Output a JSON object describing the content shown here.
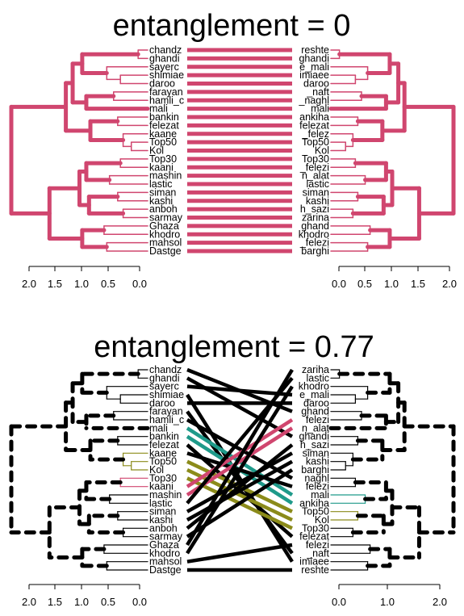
{
  "colors": {
    "pink": "#d0466f",
    "teal": "#1f9a8a",
    "olive": "#8b8b1a",
    "black": "#000000",
    "background": "#ffffff"
  },
  "chart_data": [
    {
      "type": "tanglegram",
      "title": "entanglement = 0",
      "entanglement": 0,
      "left_labels": [
        "chandz",
        "ghandi",
        "sayerc",
        "shimiae",
        "daroo",
        "farayan",
        "hamli_c",
        "mali",
        "bankin",
        "felezat",
        "kaane",
        "Top50",
        "Kol",
        "Top30",
        "kaani",
        "mashin",
        "lastic",
        "siman",
        "kashi",
        "anboh",
        "sarmay",
        "Ghaza",
        "khodro",
        "mahsol",
        "Dastge"
      ],
      "right_labels": [
        "reshte",
        "ghandi",
        "e_mali",
        "imiaee",
        "daroo",
        "_naft",
        "_naghl",
        "mali",
        "ankiha",
        "felezat",
        "_felez",
        "Top50",
        "Kol",
        "Top30",
        "_felezi",
        "n_alat",
        "lastic",
        "siman",
        "kashi",
        "h_sazi",
        "zarina",
        "ghand",
        "khodro",
        "_felezi",
        "barghi"
      ],
      "connections": [
        [
          0,
          0
        ],
        [
          1,
          1
        ],
        [
          2,
          2
        ],
        [
          3,
          3
        ],
        [
          4,
          4
        ],
        [
          5,
          5
        ],
        [
          6,
          6
        ],
        [
          7,
          7
        ],
        [
          8,
          8
        ],
        [
          9,
          9
        ],
        [
          10,
          10
        ],
        [
          11,
          11
        ],
        [
          12,
          12
        ],
        [
          13,
          13
        ],
        [
          14,
          14
        ],
        [
          15,
          15
        ],
        [
          16,
          16
        ],
        [
          17,
          17
        ],
        [
          18,
          18
        ],
        [
          19,
          19
        ],
        [
          20,
          20
        ],
        [
          21,
          21
        ],
        [
          22,
          22
        ],
        [
          23,
          23
        ],
        [
          24,
          24
        ]
      ],
      "connection_colors": [
        "pink"
      ],
      "left_axis_ticks": [
        "2.0",
        "1.5",
        "1.0",
        "0.5",
        "0.0"
      ],
      "right_axis_ticks": [
        "0.0",
        "0.5",
        "1.0",
        "1.5",
        "2.0"
      ]
    },
    {
      "type": "tanglegram",
      "title": "entanglement = 0.77",
      "entanglement": 0.77,
      "left_labels": [
        "chandz",
        "ghandi",
        "sayerc",
        "shimiae",
        "daroo",
        "farayan",
        "hamli_c",
        "mali",
        "bankin",
        "felezat",
        "kaane",
        "Top50",
        "Kol",
        "Top30",
        "kaani",
        "mashin",
        "lastic",
        "siman",
        "kashi",
        "anboh",
        "sarmay",
        "Ghaza",
        "khodro",
        "mahsol",
        "Dastge"
      ],
      "right_labels": [
        "zariha",
        "lastic",
        "khodro",
        "e_mali",
        "daroo",
        "ghand",
        "felezi",
        "n_alat",
        "ghandi",
        "h_sazi",
        "siman",
        "kashi",
        "barghi",
        "naghl",
        "felezi",
        "mali",
        "ankiha",
        "Top50",
        "Kol",
        "Top30",
        "felezat",
        "felezi",
        "_naft",
        "imiaee",
        "reshte"
      ],
      "connections": [
        [
          0,
          5
        ],
        [
          1,
          8
        ],
        [
          2,
          3
        ],
        [
          3,
          23
        ],
        [
          4,
          4
        ],
        [
          5,
          22
        ],
        [
          6,
          13
        ],
        [
          7,
          15
        ],
        [
          8,
          16
        ],
        [
          9,
          20
        ],
        [
          10,
          14
        ],
        [
          11,
          17
        ],
        [
          12,
          18
        ],
        [
          13,
          19
        ],
        [
          14,
          6
        ],
        [
          15,
          7
        ],
        [
          16,
          1
        ],
        [
          17,
          10
        ],
        [
          18,
          11
        ],
        [
          19,
          9
        ],
        [
          20,
          12
        ],
        [
          21,
          0
        ],
        [
          22,
          2
        ],
        [
          23,
          21
        ],
        [
          24,
          24
        ]
      ],
      "connection_colors": [
        "black",
        "black",
        "black",
        "black",
        "black",
        "black",
        "black",
        "teal",
        "teal",
        "black",
        "black",
        "olive",
        "olive",
        "olive",
        "pink",
        "pink",
        "black",
        "black",
        "black",
        "black",
        "black",
        "black",
        "black",
        "black",
        "black"
      ],
      "left_axis_ticks": [
        "2.0",
        "1.5",
        "1.0",
        "0.5",
        "0.0"
      ],
      "right_axis_ticks": [
        "0.0",
        "1.0",
        "2.0"
      ]
    }
  ]
}
